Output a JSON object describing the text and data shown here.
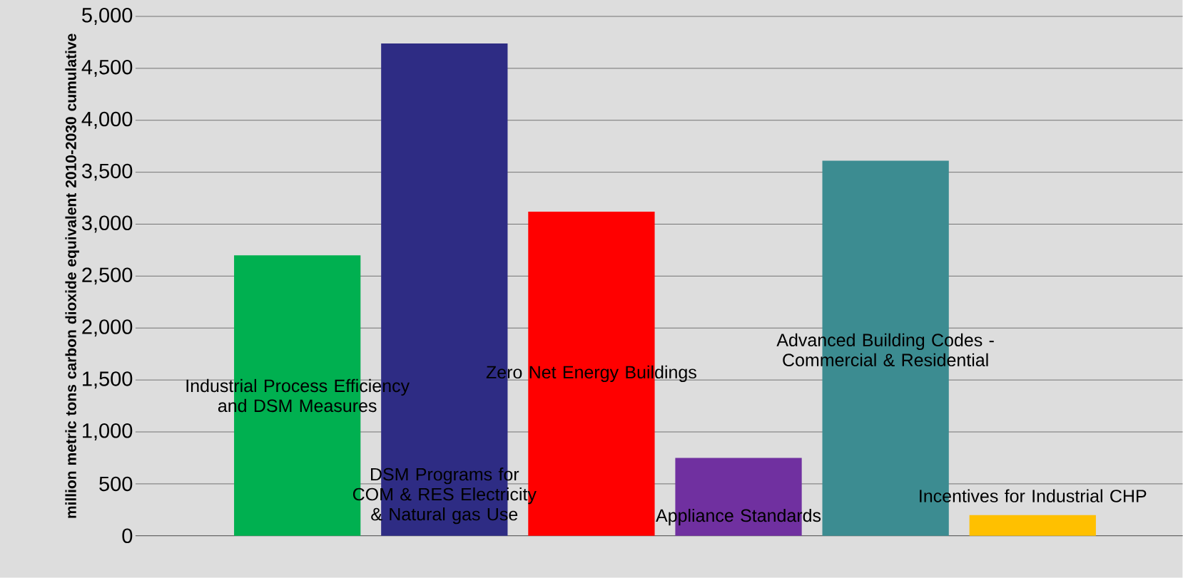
{
  "chart_data": {
    "type": "bar",
    "ylabel": "million metric tons carbon dioxide equivalent 2010-2030 cumulative",
    "categories": [
      "Industrial Process Efficiency and DSM Measures",
      "DSM Programs for COM & RES Electricity & Natural gas Use",
      "Zero Net Energy Buildings",
      "Appliance Standards",
      "Advanced Building Codes - Commercial & Residential",
      "Incentives for Industrial CHP"
    ],
    "values": [
      2700,
      4740,
      3120,
      750,
      3610,
      200
    ],
    "colors": [
      "#00b050",
      "#2e2c84",
      "#ff0000",
      "#7030a0",
      "#3c8c91",
      "#ffc000"
    ],
    "ylim": [
      0,
      5000
    ],
    "yticks": [
      0,
      500,
      {
        "value": 1000,
        "label": "1,000"
      },
      {
        "value": 1500,
        "label": "1,500"
      },
      {
        "value": 2000,
        "label": "2,000"
      },
      {
        "value": 2500,
        "label": "2,500"
      },
      {
        "value": 3000,
        "label": "3,000"
      },
      {
        "value": 3500,
        "label": "3,500"
      },
      {
        "value": 4000,
        "label": "4,000"
      },
      {
        "value": 4500,
        "label": "4,500"
      },
      {
        "value": 5000,
        "label": "5,000"
      }
    ],
    "grid": "y"
  }
}
